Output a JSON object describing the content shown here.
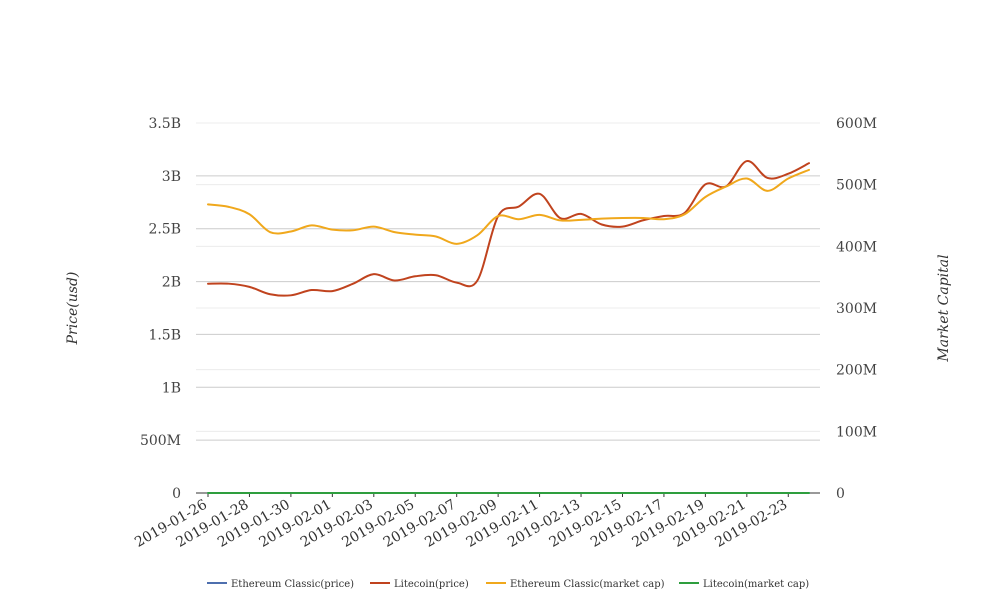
{
  "chart_data": {
    "type": "line",
    "title": "",
    "xlabel": "",
    "ylabel_left": "Price(usd)",
    "ylabel_right": "Market Capital",
    "x": [
      "2019-01-26",
      "2019-01-27",
      "2019-01-28",
      "2019-01-29",
      "2019-01-30",
      "2019-01-31",
      "2019-02-01",
      "2019-02-02",
      "2019-02-03",
      "2019-02-04",
      "2019-02-05",
      "2019-02-06",
      "2019-02-07",
      "2019-02-08",
      "2019-02-09",
      "2019-02-10",
      "2019-02-11",
      "2019-02-12",
      "2019-02-13",
      "2019-02-14",
      "2019-02-15",
      "2019-02-16",
      "2019-02-17",
      "2019-02-18",
      "2019-02-19",
      "2019-02-20",
      "2019-02-21",
      "2019-02-22",
      "2019-02-23",
      "2019-02-24"
    ],
    "x_tick_labels": [
      "2019-01-26",
      "2019-01-28",
      "2019-01-30",
      "2019-02-01",
      "2019-02-03",
      "2019-02-05",
      "2019-02-07",
      "2019-02-09",
      "2019-02-11",
      "2019-02-13",
      "2019-02-15",
      "2019-02-17",
      "2019-02-19",
      "2019-02-21",
      "2019-02-23"
    ],
    "y_left_ticks": [
      "0",
      "500M",
      "1B",
      "1.5B",
      "2B",
      "2.5B",
      "3B",
      "3.5B"
    ],
    "y_right_ticks": [
      "0",
      "100M",
      "200M",
      "300M",
      "400M",
      "500M",
      "600M"
    ],
    "ylim_left": [
      0,
      3500000000
    ],
    "ylim_right": [
      0,
      600000000
    ],
    "grid": true,
    "legend_position": "bottom",
    "series": [
      {
        "name": "Ethereum Classic(price)",
        "axis": "left",
        "color": "#4e6fae",
        "values": [
          4.3,
          4.3,
          4.2,
          4.0,
          4.0,
          4.1,
          4.1,
          4.2,
          4.3,
          4.2,
          4.2,
          4.2,
          4.1,
          4.1,
          4.6,
          4.6,
          4.6,
          4.5,
          4.5,
          4.4,
          4.4,
          4.4,
          4.4,
          4.5,
          4.8,
          4.9,
          5.0,
          4.9,
          5.0,
          5.1
        ]
      },
      {
        "name": "Litecoin(price)",
        "axis": "left",
        "color": "#c0431e",
        "values": [
          1980000000,
          1980000000,
          1950000000,
          1880000000,
          1870000000,
          1920000000,
          1910000000,
          1980000000,
          2070000000,
          2010000000,
          2050000000,
          2060000000,
          1990000000,
          2010000000,
          2620000000,
          2710000000,
          2830000000,
          2600000000,
          2640000000,
          2540000000,
          2520000000,
          2580000000,
          2620000000,
          2650000000,
          2920000000,
          2900000000,
          3140000000,
          2980000000,
          3020000000,
          3120000000
        ]
      },
      {
        "name": "Ethereum Classic(market cap)",
        "axis": "right",
        "color": "#f0a81c",
        "values": [
          468000000,
          464000000,
          452000000,
          423000000,
          424000000,
          434000000,
          427000000,
          426000000,
          432000000,
          423000000,
          419000000,
          416000000,
          404000000,
          418000000,
          449000000,
          444000000,
          451000000,
          442000000,
          443000000,
          445000000,
          446000000,
          446000000,
          444000000,
          452000000,
          480000000,
          497000000,
          510000000,
          490000000,
          510000000,
          524000000
        ]
      },
      {
        "name": "Litecoin(market cap)",
        "axis": "right",
        "color": "#2e9e3e",
        "values": [
          0.03,
          0.03,
          0.03,
          0.03,
          0.03,
          0.03,
          0.03,
          0.03,
          0.03,
          0.03,
          0.03,
          0.03,
          0.03,
          0.03,
          0.03,
          0.03,
          0.03,
          0.03,
          0.03,
          0.03,
          0.03,
          0.03,
          0.03,
          0.03,
          0.03,
          0.03,
          0.03,
          0.03,
          0.03,
          0.03
        ]
      }
    ]
  }
}
